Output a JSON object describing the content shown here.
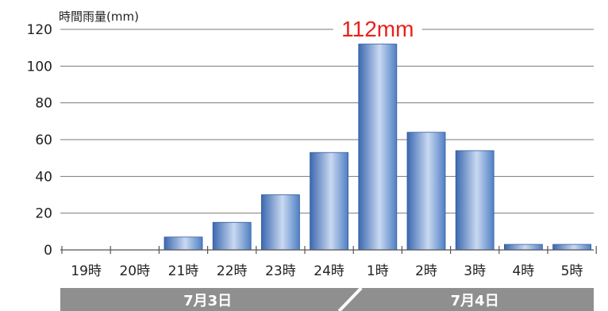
{
  "chart_data": {
    "type": "bar",
    "title": "",
    "ylabel": "時間雨量(mm)",
    "xlabel": "",
    "ylim": [
      0,
      120
    ],
    "yticks": [
      0,
      20,
      40,
      60,
      80,
      100,
      120
    ],
    "grid": true,
    "categories": [
      "19時",
      "20時",
      "21時",
      "22時",
      "23時",
      "24時",
      "1時",
      "2時",
      "3時",
      "4時",
      "5時"
    ],
    "values": [
      0,
      0,
      7,
      15,
      30,
      53,
      112,
      64,
      54,
      3,
      3
    ],
    "annotation": {
      "text": "112mm",
      "category_index": 6,
      "color": "#e8221b"
    },
    "date_bands": [
      {
        "label": "7月3日",
        "start_index": 0,
        "end_index": 5
      },
      {
        "label": "7月4日",
        "start_index": 6,
        "end_index": 10
      }
    ],
    "colors": {
      "bar_dark": "#3f6fb6",
      "bar_light": "#c8d9f0",
      "grid": "#7a7a7a",
      "axis": "#555555",
      "band": "#8f8f8f",
      "band_text": "#ffffff"
    }
  }
}
